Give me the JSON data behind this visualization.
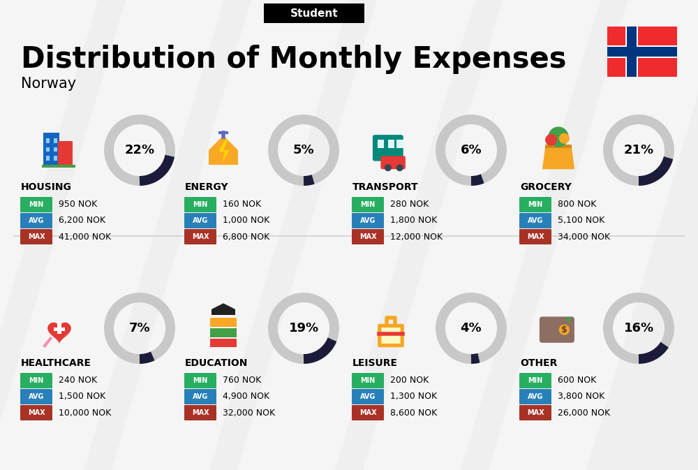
{
  "title": "Distribution of Monthly Expenses",
  "subtitle": "Student",
  "country": "Norway",
  "bg_color": "#efefef",
  "categories": [
    {
      "name": "HOUSING",
      "percent": 22,
      "min": "950 NOK",
      "avg": "6,200 NOK",
      "max": "41,000 NOK",
      "row": 0,
      "col": 0
    },
    {
      "name": "ENERGY",
      "percent": 5,
      "min": "160 NOK",
      "avg": "1,000 NOK",
      "max": "6,800 NOK",
      "row": 0,
      "col": 1
    },
    {
      "name": "TRANSPORT",
      "percent": 6,
      "min": "280 NOK",
      "avg": "1,800 NOK",
      "max": "12,000 NOK",
      "row": 0,
      "col": 2
    },
    {
      "name": "GROCERY",
      "percent": 21,
      "min": "800 NOK",
      "avg": "5,100 NOK",
      "max": "34,000 NOK",
      "row": 0,
      "col": 3
    },
    {
      "name": "HEALTHCARE",
      "percent": 7,
      "min": "240 NOK",
      "avg": "1,500 NOK",
      "max": "10,000 NOK",
      "row": 1,
      "col": 0
    },
    {
      "name": "EDUCATION",
      "percent": 19,
      "min": "760 NOK",
      "avg": "4,900 NOK",
      "max": "32,000 NOK",
      "row": 1,
      "col": 1
    },
    {
      "name": "LEISURE",
      "percent": 4,
      "min": "200 NOK",
      "avg": "1,300 NOK",
      "max": "8,600 NOK",
      "row": 1,
      "col": 2
    },
    {
      "name": "OTHER",
      "percent": 16,
      "min": "600 NOK",
      "avg": "3,800 NOK",
      "max": "26,000 NOK",
      "row": 1,
      "col": 3
    }
  ],
  "color_min": "#27ae60",
  "color_avg": "#2980b9",
  "color_max": "#a93226",
  "ring_dark": "#1c1c3a",
  "ring_gray": "#c8c8c8",
  "norway_red": "#EF2B2D",
  "norway_blue": "#003680",
  "stripe_color": "#e0e0e0",
  "divider_color": "#d0d0d0",
  "title_fontsize": 30,
  "subtitle_fontsize": 11,
  "country_fontsize": 15,
  "category_fontsize": 10,
  "value_fontsize": 9,
  "badge_fontsize": 7,
  "pct_fontsize": 13,
  "fig_width": 10.0,
  "fig_height": 6.73
}
